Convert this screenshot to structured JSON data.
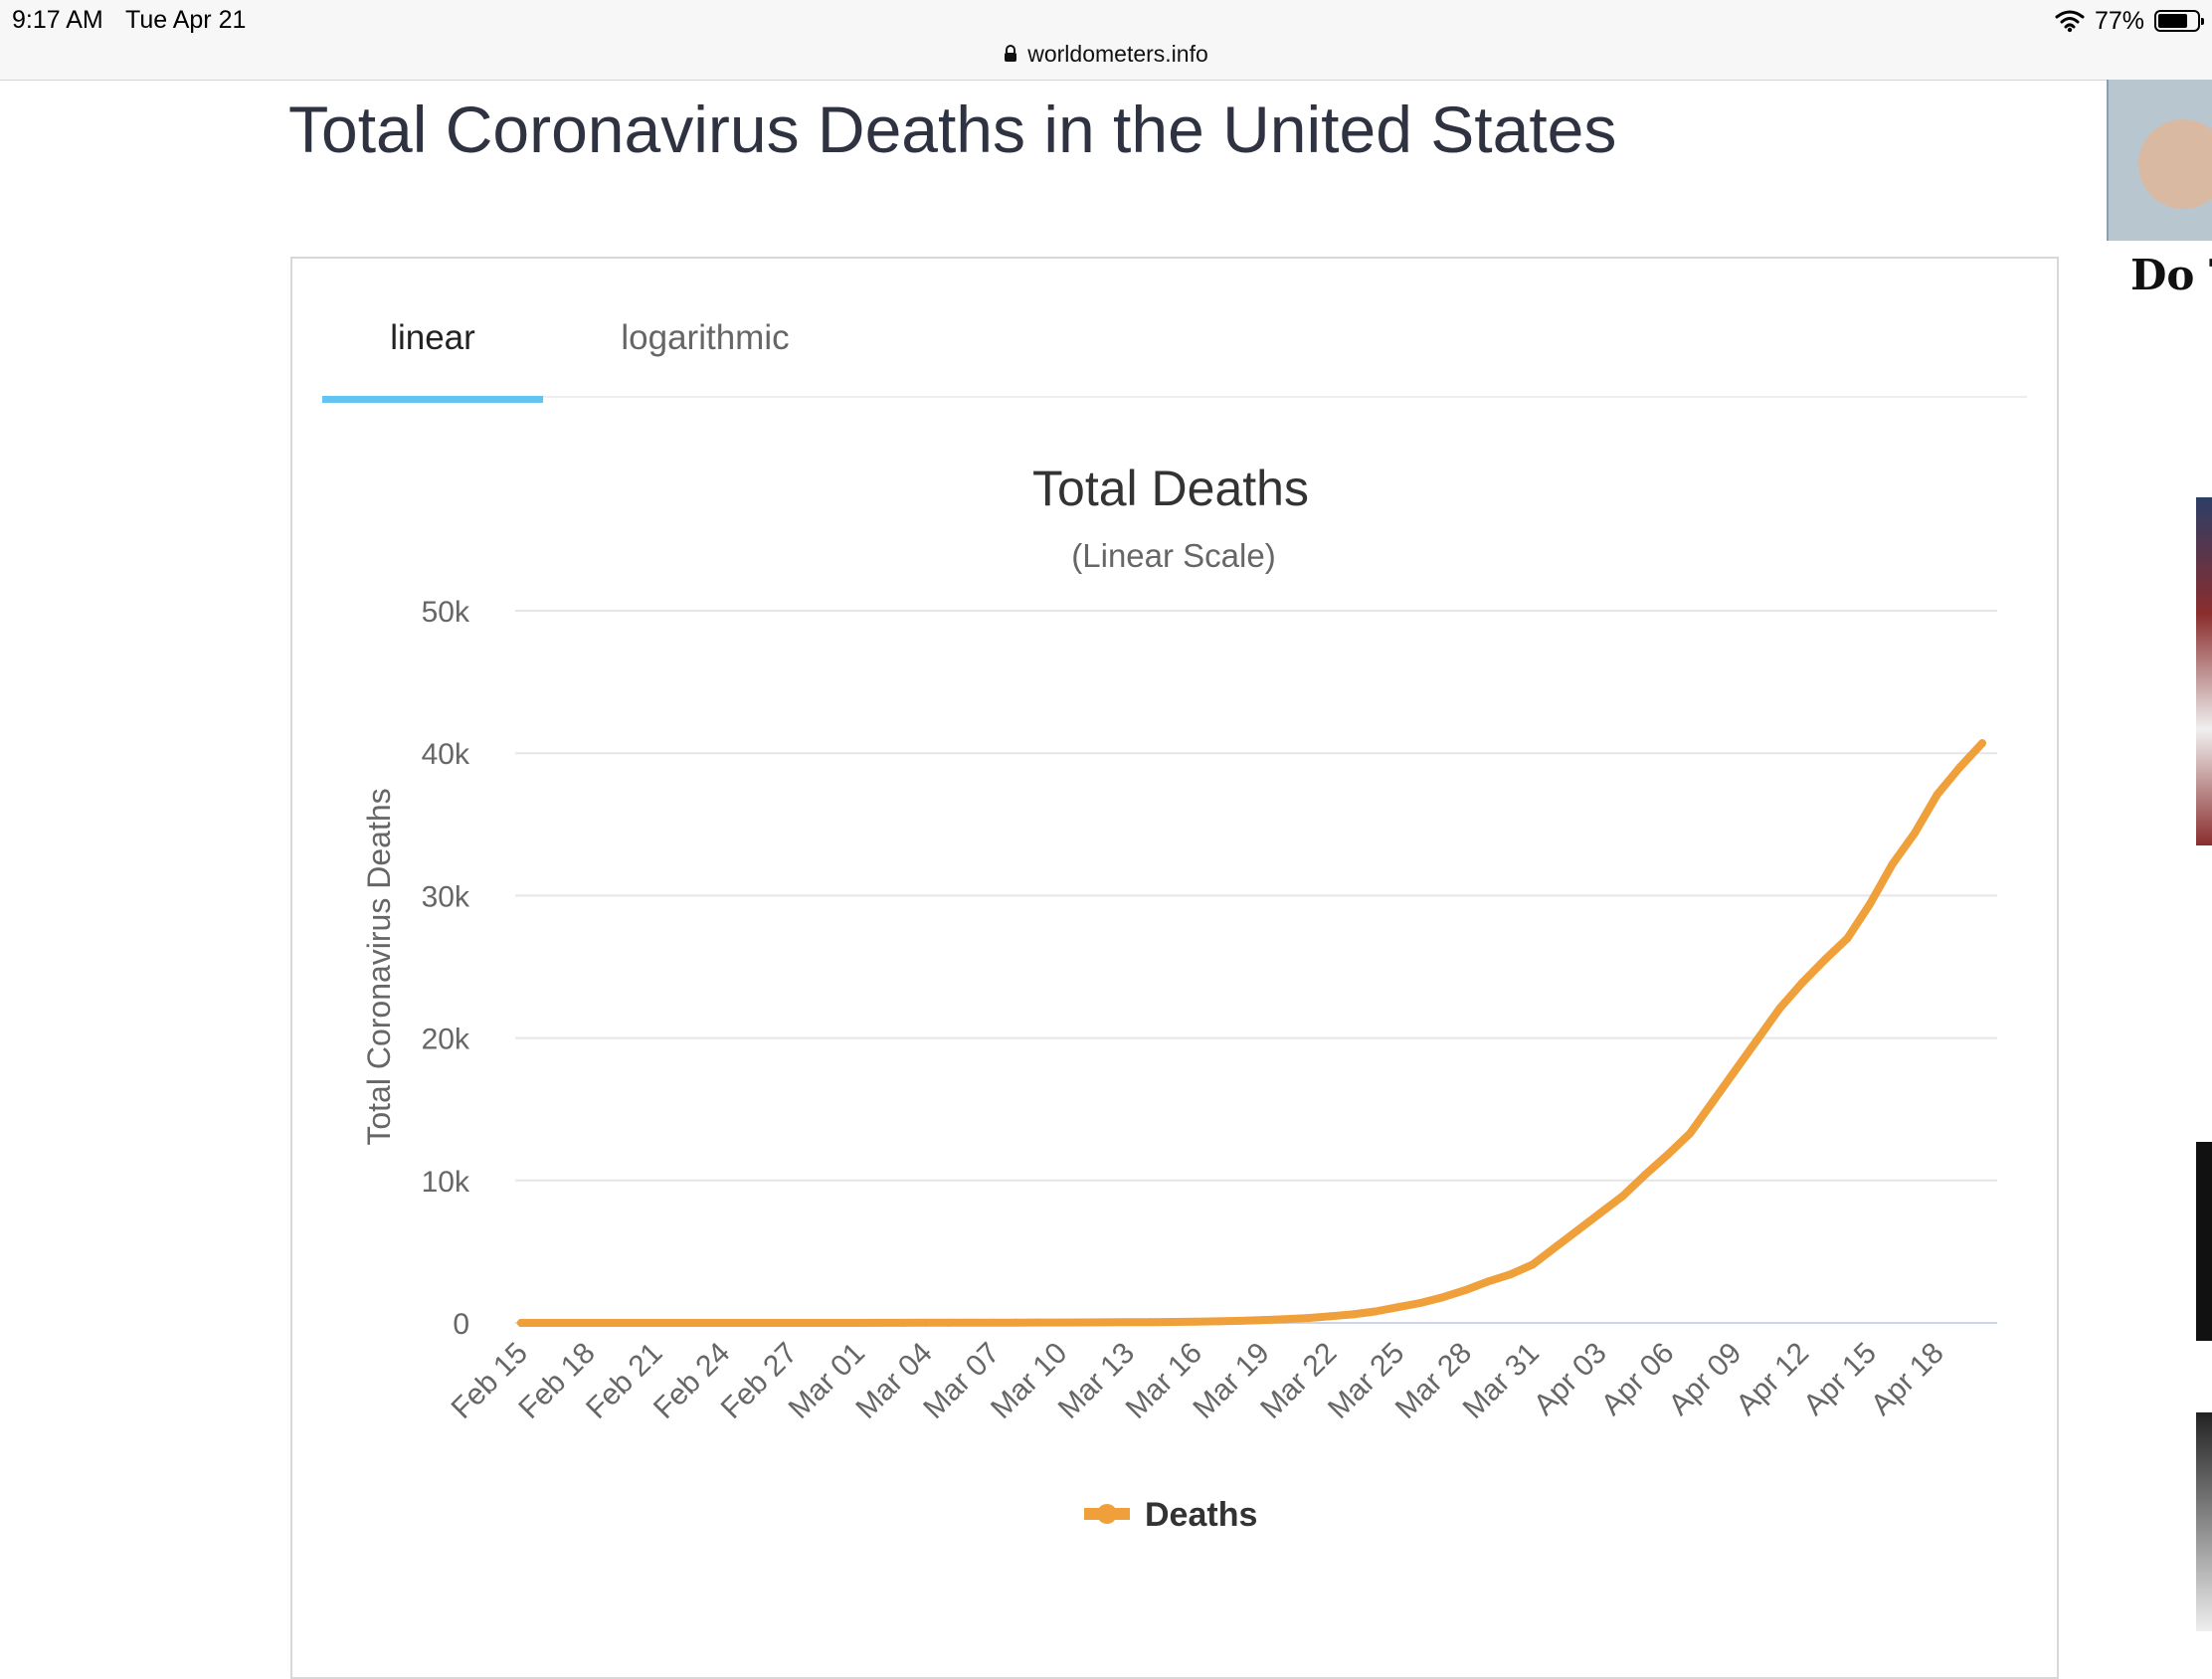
{
  "status_bar": {
    "time": "9:17 AM",
    "date": "Tue Apr 21",
    "battery": "77%",
    "battery_level": 0.77,
    "url": "worldometers.info"
  },
  "page": {
    "title": "Total Coronavirus Deaths in the United States"
  },
  "tabs": {
    "linear": "linear",
    "logarithmic": "logarithmic",
    "active": "linear"
  },
  "ad": {
    "text": "Do T"
  },
  "colors": {
    "series": "#f0a03a",
    "tab_active": "#62c4f0",
    "grid": "#e6e6e6",
    "axis_text": "#666666"
  },
  "chart_data": {
    "type": "line",
    "title": "Total Deaths",
    "subtitle": "(Linear Scale)",
    "ylabel": "Total Coronavirus Deaths",
    "xlabel": "",
    "ylim": [
      0,
      50000
    ],
    "yticks": [
      0,
      10000,
      20000,
      30000,
      40000,
      50000
    ],
    "ytick_labels": [
      "0",
      "10k",
      "20k",
      "30k",
      "40k",
      "50k"
    ],
    "grid": true,
    "legend_position": "bottom-center",
    "categories": [
      "Feb 15",
      "Feb 16",
      "Feb 17",
      "Feb 18",
      "Feb 19",
      "Feb 20",
      "Feb 21",
      "Feb 22",
      "Feb 23",
      "Feb 24",
      "Feb 25",
      "Feb 26",
      "Feb 27",
      "Feb 28",
      "Feb 29",
      "Mar 01",
      "Mar 02",
      "Mar 03",
      "Mar 04",
      "Mar 05",
      "Mar 06",
      "Mar 07",
      "Mar 08",
      "Mar 09",
      "Mar 10",
      "Mar 11",
      "Mar 12",
      "Mar 13",
      "Mar 14",
      "Mar 15",
      "Mar 16",
      "Mar 17",
      "Mar 18",
      "Mar 19",
      "Mar 20",
      "Mar 21",
      "Mar 22",
      "Mar 23",
      "Mar 24",
      "Mar 25",
      "Mar 26",
      "Mar 27",
      "Mar 28",
      "Mar 29",
      "Mar 30",
      "Mar 31",
      "Apr 01",
      "Apr 02",
      "Apr 03",
      "Apr 04",
      "Apr 05",
      "Apr 06",
      "Apr 07",
      "Apr 08",
      "Apr 09",
      "Apr 10",
      "Apr 11",
      "Apr 12",
      "Apr 13",
      "Apr 14",
      "Apr 15",
      "Apr 16",
      "Apr 17",
      "Apr 18",
      "Apr 19",
      "Apr 20"
    ],
    "xtick_labels": [
      "Feb 15",
      "Feb 18",
      "Feb 21",
      "Feb 24",
      "Feb 27",
      "Mar 01",
      "Mar 04",
      "Mar 07",
      "Mar 10",
      "Mar 13",
      "Mar 16",
      "Mar 19",
      "Mar 22",
      "Mar 25",
      "Mar 28",
      "Mar 31",
      "Apr 03",
      "Apr 06",
      "Apr 09",
      "Apr 12",
      "Apr 15",
      "Apr 18"
    ],
    "series": [
      {
        "name": "Deaths",
        "values": [
          0,
          0,
          0,
          0,
          0,
          0,
          0,
          0,
          0,
          0,
          0,
          0,
          0,
          0,
          1,
          1,
          6,
          9,
          11,
          12,
          15,
          19,
          22,
          26,
          30,
          38,
          41,
          48,
          57,
          68,
          86,
          109,
          150,
          206,
          255,
          341,
          471,
          600,
          800,
          1100,
          1400,
          1800,
          2300,
          2900,
          3400,
          4100,
          5300,
          6500,
          7700,
          8900,
          10400,
          11800,
          13300,
          15500,
          17700,
          19900,
          22100,
          23900,
          25500,
          27000,
          29400,
          32200,
          34400,
          37100,
          39000,
          40700
        ]
      }
    ]
  }
}
